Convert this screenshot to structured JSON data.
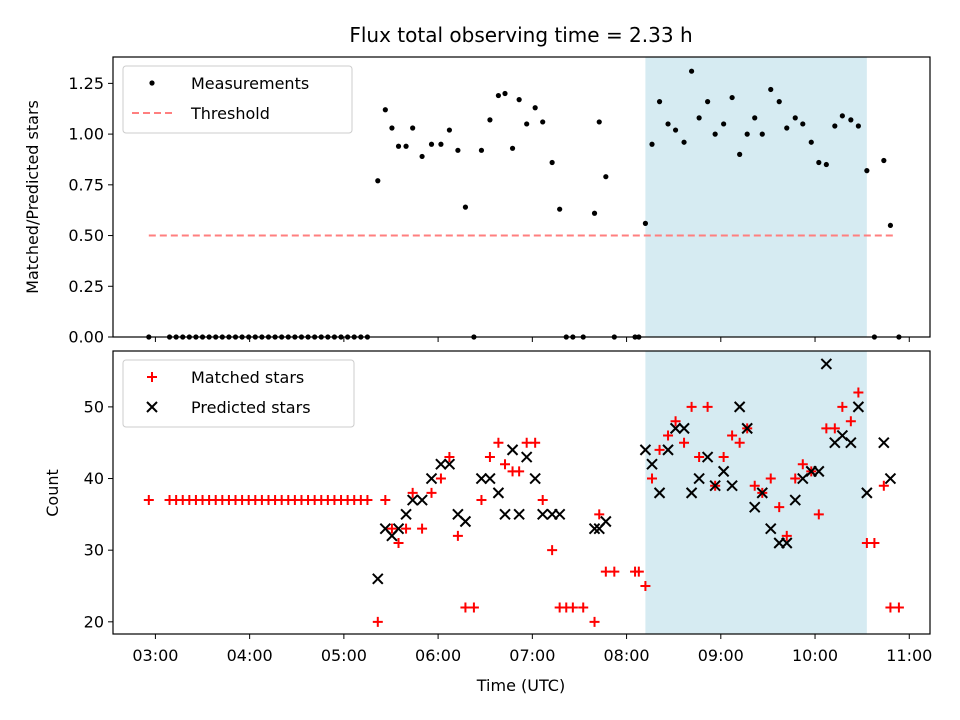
{
  "chart_data": [
    {
      "type": "scatter",
      "title": "Flux total observing time = 2.33 h",
      "xlabel": "",
      "ylabel": "Matched/Predicted stars",
      "ylim": [
        0,
        1.38
      ],
      "yticks": [
        0.0,
        0.25,
        0.5,
        0.75,
        1.0,
        1.25
      ],
      "ytick_labels": [
        "0.00",
        "0.25",
        "0.50",
        "0.75",
        "1.00",
        "1.25"
      ],
      "x_unit": "hours_utc",
      "xlim": [
        2.55,
        11.22
      ],
      "highlight_span": {
        "from": 8.2,
        "to": 10.55,
        "color": "#add8e6"
      },
      "legend": {
        "placement": "top-left",
        "entries": [
          "Measurements",
          "Threshold"
        ]
      },
      "series": [
        {
          "name": "Measurements",
          "marker": "dot",
          "color": "#000000",
          "x": [
            2.93,
            3.15,
            3.22,
            3.29,
            3.36,
            3.43,
            3.5,
            3.57,
            3.64,
            3.71,
            3.78,
            3.85,
            3.92,
            3.99,
            4.06,
            4.13,
            4.2,
            4.27,
            4.34,
            4.41,
            4.48,
            4.55,
            4.62,
            4.69,
            4.76,
            4.83,
            4.9,
            4.97,
            5.04,
            5.11,
            5.18,
            5.25,
            5.36,
            5.44,
            5.51,
            5.58,
            5.66,
            5.73,
            5.83,
            5.93,
            6.03,
            6.12,
            6.21,
            6.29,
            6.38,
            6.46,
            6.55,
            6.64,
            6.71,
            6.79,
            6.86,
            6.94,
            7.03,
            7.11,
            7.21,
            7.29,
            7.36,
            7.43,
            7.54,
            7.66,
            7.71,
            7.78,
            7.87,
            8.09,
            8.13,
            8.2,
            8.27,
            8.35,
            8.44,
            8.52,
            8.61,
            8.69,
            8.77,
            8.86,
            8.94,
            9.03,
            9.12,
            9.2,
            9.28,
            9.36,
            9.44,
            9.53,
            9.62,
            9.7,
            9.79,
            9.87,
            9.96,
            10.04,
            10.12,
            10.21,
            10.29,
            10.38,
            10.46,
            10.55,
            10.63,
            10.73,
            10.8,
            10.89
          ],
          "y": [
            0.0,
            0.0,
            0.0,
            0.0,
            0.0,
            0.0,
            0.0,
            0.0,
            0.0,
            0.0,
            0.0,
            0.0,
            0.0,
            0.0,
            0.0,
            0.0,
            0.0,
            0.0,
            0.0,
            0.0,
            0.0,
            0.0,
            0.0,
            0.0,
            0.0,
            0.0,
            0.0,
            0.0,
            0.0,
            0.0,
            0.0,
            0.0,
            0.77,
            1.12,
            1.03,
            0.94,
            0.94,
            1.03,
            0.89,
            0.95,
            0.95,
            1.02,
            0.92,
            0.64,
            0.0,
            0.92,
            1.07,
            1.19,
            1.2,
            0.93,
            1.17,
            1.05,
            1.13,
            1.06,
            0.86,
            0.63,
            0.0,
            0.0,
            0.0,
            0.61,
            1.06,
            0.79,
            0.0,
            0.0,
            0.0,
            0.56,
            0.95,
            1.16,
            1.05,
            1.02,
            0.96,
            1.31,
            1.08,
            1.16,
            1.0,
            1.05,
            1.18,
            0.9,
            1.0,
            1.08,
            1.0,
            1.22,
            1.16,
            1.03,
            1.08,
            1.05,
            0.96,
            0.86,
            0.85,
            1.04,
            1.09,
            1.07,
            1.04,
            0.82,
            0.0,
            0.87,
            0.55,
            0.0
          ]
        },
        {
          "name": "Threshold",
          "line": "dashed",
          "color": "#ff7f7f",
          "x": [
            2.93,
            10.85
          ],
          "y": [
            0.5,
            0.5
          ]
        }
      ]
    },
    {
      "type": "scatter",
      "title": "",
      "xlabel": "Time (UTC)",
      "ylabel": "Count",
      "ylim": [
        18.3,
        57.8
      ],
      "yticks": [
        20,
        30,
        40,
        50
      ],
      "ytick_labels": [
        "20",
        "30",
        "40",
        "50"
      ],
      "x_unit": "hours_utc",
      "xlim": [
        2.55,
        11.22
      ],
      "xticks": [
        3,
        4,
        5,
        6,
        7,
        8,
        9,
        10,
        11
      ],
      "xtick_labels": [
        "03:00",
        "04:00",
        "05:00",
        "06:00",
        "07:00",
        "08:00",
        "09:00",
        "10:00",
        "11:00"
      ],
      "highlight_span": {
        "from": 8.2,
        "to": 10.55,
        "color": "#add8e6"
      },
      "legend": {
        "placement": "top-left",
        "entries": [
          "Matched stars",
          "Predicted stars"
        ]
      },
      "series": [
        {
          "name": "Matched stars",
          "marker": "plus",
          "color": "#ff0000",
          "x": [
            2.93,
            3.15,
            3.22,
            3.29,
            3.36,
            3.43,
            3.5,
            3.57,
            3.64,
            3.71,
            3.78,
            3.85,
            3.92,
            3.99,
            4.06,
            4.13,
            4.2,
            4.27,
            4.34,
            4.41,
            4.48,
            4.55,
            4.62,
            4.69,
            4.76,
            4.83,
            4.9,
            4.97,
            5.04,
            5.11,
            5.18,
            5.25,
            5.36,
            5.44,
            5.51,
            5.58,
            5.66,
            5.73,
            5.83,
            5.93,
            6.03,
            6.12,
            6.21,
            6.29,
            6.38,
            6.46,
            6.55,
            6.64,
            6.71,
            6.79,
            6.86,
            6.94,
            7.03,
            7.11,
            7.21,
            7.29,
            7.36,
            7.43,
            7.54,
            7.66,
            7.71,
            7.78,
            7.87,
            8.09,
            8.13,
            8.2,
            8.27,
            8.35,
            8.44,
            8.52,
            8.61,
            8.69,
            8.77,
            8.86,
            8.94,
            9.03,
            9.12,
            9.2,
            9.28,
            9.36,
            9.44,
            9.53,
            9.62,
            9.7,
            9.79,
            9.87,
            9.96,
            10.04,
            10.12,
            10.21,
            10.29,
            10.38,
            10.46,
            10.55,
            10.63,
            10.73,
            10.8,
            10.89
          ],
          "y": [
            37,
            37,
            37,
            37,
            37,
            37,
            37,
            37,
            37,
            37,
            37,
            37,
            37,
            37,
            37,
            37,
            37,
            37,
            37,
            37,
            37,
            37,
            37,
            37,
            37,
            37,
            37,
            37,
            37,
            37,
            37,
            37,
            20,
            37,
            33,
            31,
            33,
            38,
            33,
            38,
            40,
            43,
            32,
            22,
            22,
            37,
            43,
            45,
            42,
            41,
            41,
            45,
            45,
            37,
            30,
            22,
            22,
            22,
            22,
            20,
            35,
            27,
            27,
            27,
            27,
            25,
            40,
            44,
            46,
            48,
            45,
            50,
            43,
            50,
            39,
            43,
            46,
            45,
            47,
            39,
            38,
            40,
            36,
            32,
            40,
            42,
            41,
            35,
            47,
            47,
            50,
            48,
            52,
            31,
            31,
            39,
            22,
            22
          ]
        },
        {
          "name": "Predicted stars",
          "marker": "x",
          "color": "#000000",
          "x": [
            5.36,
            5.44,
            5.51,
            5.58,
            5.66,
            5.73,
            5.83,
            5.93,
            6.03,
            6.12,
            6.21,
            6.29,
            6.46,
            6.55,
            6.64,
            6.71,
            6.79,
            6.86,
            6.94,
            7.03,
            7.11,
            7.21,
            7.29,
            7.66,
            7.71,
            7.78,
            8.2,
            8.27,
            8.35,
            8.44,
            8.52,
            8.61,
            8.69,
            8.77,
            8.86,
            8.94,
            9.03,
            9.12,
            9.2,
            9.28,
            9.36,
            9.44,
            9.53,
            9.62,
            9.7,
            9.79,
            9.87,
            9.96,
            10.04,
            10.12,
            10.21,
            10.29,
            10.38,
            10.46,
            10.55,
            10.73,
            10.8
          ],
          "y": [
            26,
            33,
            32,
            33,
            35,
            37,
            37,
            40,
            42,
            42,
            35,
            34,
            40,
            40,
            38,
            35,
            44,
            35,
            43,
            40,
            35,
            35,
            35,
            33,
            33,
            34,
            44,
            42,
            38,
            44,
            47,
            47,
            38,
            40,
            43,
            39,
            41,
            39,
            50,
            47,
            36,
            38,
            33,
            31,
            31,
            37,
            40,
            41,
            41,
            56,
            45,
            46,
            45,
            50,
            38,
            45,
            40
          ]
        }
      ]
    }
  ]
}
